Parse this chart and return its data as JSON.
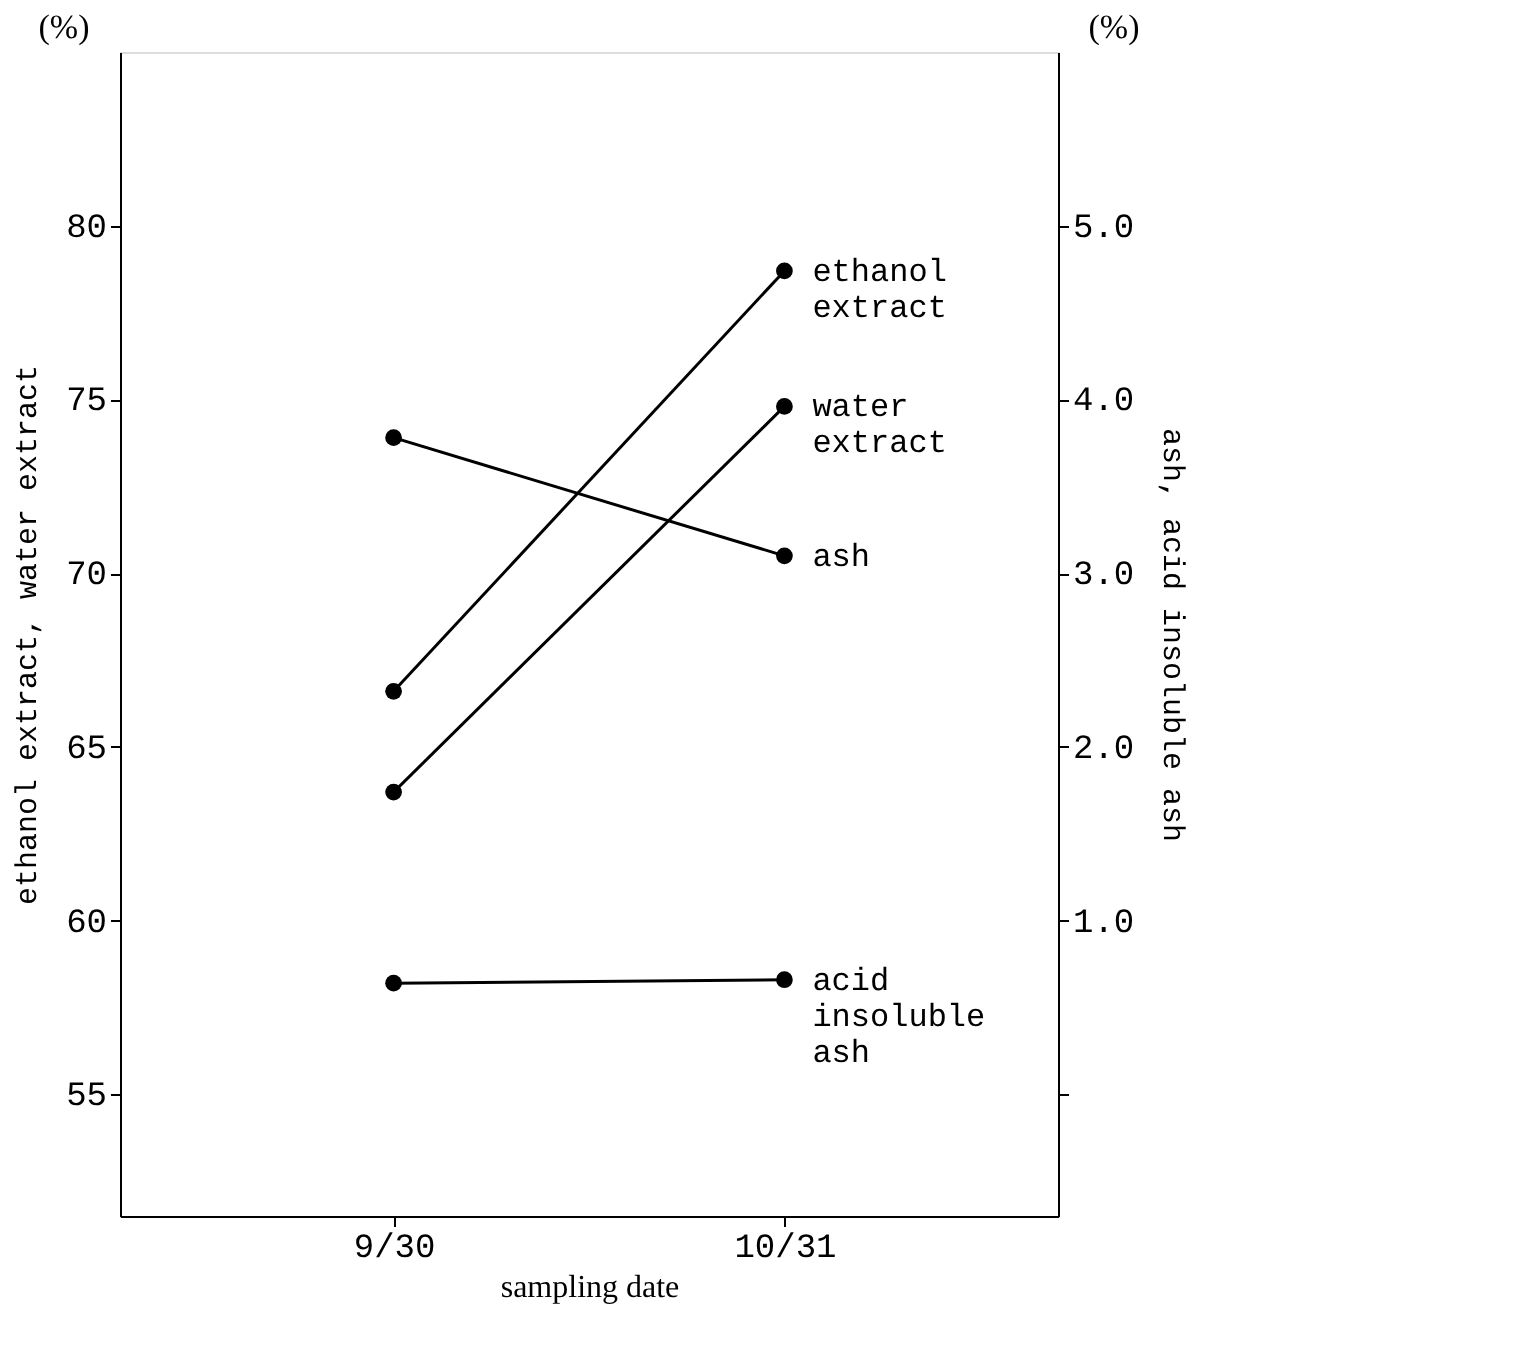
{
  "chart_data": {
    "type": "line",
    "xlabel": "sampling date",
    "ylabel": "ethanol extract,  water extract",
    "y2label": "ash,  acid insoluble ash",
    "categories": [
      "9/30",
      "10/31"
    ],
    "series": [
      {
        "name": "ethanol extract",
        "color": "#000000",
        "values": [
          66.6,
          78.7
        ]
      },
      {
        "name": "water extract",
        "color": "#000000",
        "values": [
          63.7,
          74.8
        ]
      },
      {
        "name": "ash",
        "color": "#000000",
        "values": [
          3.78,
          3.1
        ],
        "axis": "y2"
      },
      {
        "name": "acid insoluble ash",
        "color": "#000000",
        "values": [
          0.64,
          0.66
        ],
        "axis": "y2"
      }
    ],
    "ylim": [
      51.5,
      85.0
    ],
    "yticks": [
      55,
      60,
      65,
      70,
      75,
      80
    ],
    "y2lim": [
      -0.7,
      6.0
    ],
    "y2ticks": [
      {
        "value": 0,
        "label": null
      },
      {
        "value": 1,
        "label": "1.0"
      },
      {
        "value": 2,
        "label": "2.0"
      },
      {
        "value": 3,
        "label": "3.0"
      },
      {
        "value": 4,
        "label": "4.0"
      },
      {
        "value": 5,
        "label": "5.0"
      }
    ],
    "annotations": [
      "(%)",
      "(%)"
    ],
    "marker": "circle",
    "line_style": "solid",
    "grid": false
  }
}
